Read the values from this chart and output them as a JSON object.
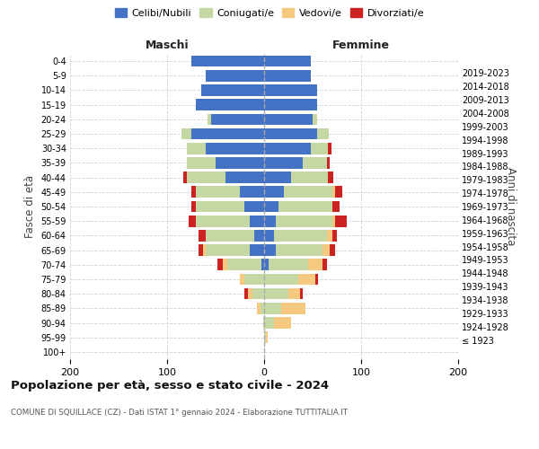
{
  "age_groups": [
    "100+",
    "95-99",
    "90-94",
    "85-89",
    "80-84",
    "75-79",
    "70-74",
    "65-69",
    "60-64",
    "55-59",
    "50-54",
    "45-49",
    "40-44",
    "35-39",
    "30-34",
    "25-29",
    "20-24",
    "15-19",
    "10-14",
    "5-9",
    "0-4"
  ],
  "birth_years": [
    "≤ 1923",
    "1924-1928",
    "1929-1933",
    "1934-1938",
    "1939-1943",
    "1944-1948",
    "1949-1953",
    "1954-1958",
    "1959-1963",
    "1964-1968",
    "1969-1973",
    "1974-1978",
    "1979-1983",
    "1984-1988",
    "1989-1993",
    "1994-1998",
    "1999-2003",
    "2004-2008",
    "2009-2013",
    "2014-2018",
    "2019-2023"
  ],
  "maschi": {
    "celibi": [
      0,
      0,
      0,
      0,
      0,
      0,
      3,
      15,
      10,
      15,
      20,
      25,
      40,
      50,
      60,
      75,
      55,
      70,
      65,
      60,
      75
    ],
    "coniugati": [
      0,
      0,
      1,
      4,
      12,
      20,
      35,
      45,
      50,
      55,
      50,
      45,
      40,
      30,
      20,
      10,
      3,
      0,
      0,
      0,
      0
    ],
    "vedovi": [
      0,
      0,
      0,
      3,
      5,
      5,
      5,
      3,
      0,
      0,
      0,
      0,
      0,
      0,
      0,
      0,
      0,
      0,
      0,
      0,
      0
    ],
    "divorziati": [
      0,
      0,
      0,
      0,
      3,
      0,
      5,
      5,
      8,
      8,
      5,
      5,
      3,
      0,
      0,
      0,
      0,
      0,
      0,
      0,
      0
    ]
  },
  "femmine": {
    "nubili": [
      0,
      0,
      0,
      0,
      0,
      0,
      5,
      12,
      10,
      12,
      15,
      20,
      28,
      40,
      48,
      55,
      50,
      55,
      55,
      48,
      48
    ],
    "coniugate": [
      0,
      2,
      10,
      18,
      25,
      35,
      40,
      48,
      55,
      58,
      55,
      50,
      38,
      25,
      18,
      12,
      5,
      0,
      0,
      0,
      0
    ],
    "vedove": [
      0,
      2,
      18,
      25,
      12,
      18,
      15,
      8,
      5,
      3,
      0,
      3,
      0,
      0,
      0,
      0,
      0,
      0,
      0,
      0,
      0
    ],
    "divorziate": [
      0,
      0,
      0,
      0,
      3,
      3,
      5,
      5,
      5,
      12,
      8,
      8,
      5,
      3,
      3,
      0,
      0,
      0,
      0,
      0,
      0
    ]
  },
  "colors": {
    "celibi_nubili": "#4472c4",
    "coniugati": "#c5d8a4",
    "vedovi": "#f5c97f",
    "divorziati": "#cc2222"
  },
  "xlim": 200,
  "title": "Popolazione per età, sesso e stato civile - 2024",
  "subtitle": "COMUNE DI SQUILLACE (CZ) - Dati ISTAT 1° gennaio 2024 - Elaborazione TUTTITALIA.IT",
  "ylabel_left": "Fasce di età",
  "ylabel_right": "Anni di nascita",
  "xlabel_maschi": "Maschi",
  "xlabel_femmine": "Femmine",
  "background_color": "#ffffff",
  "grid_color": "#cccccc"
}
